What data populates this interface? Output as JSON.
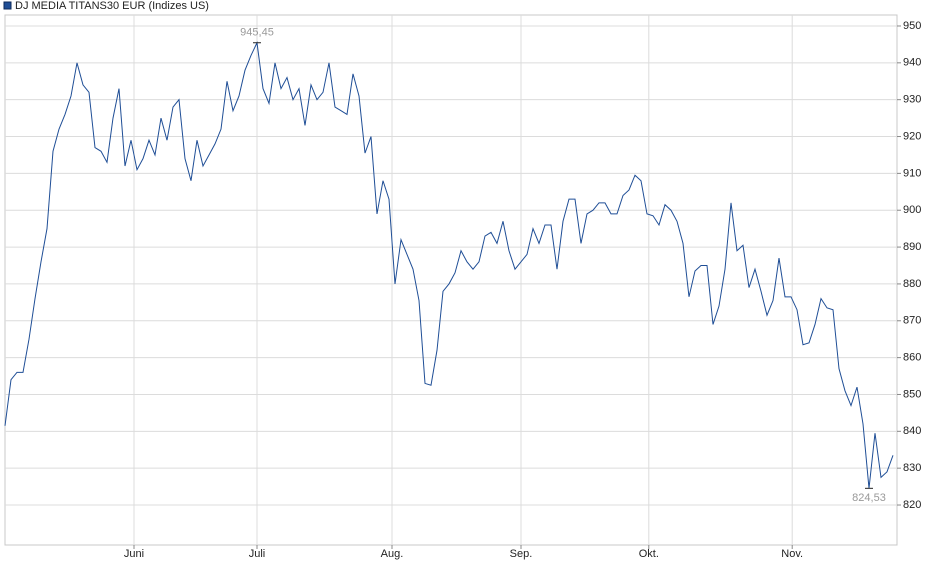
{
  "chart_data": {
    "type": "line",
    "series": [
      {
        "name": "DJ MEDIA TITANS30 EUR (Indizes US)",
        "color": "#1f4e96",
        "values": [
          841.5,
          854,
          856,
          856,
          865,
          876,
          886,
          895,
          916,
          922,
          926,
          931,
          940,
          934,
          932,
          917,
          916,
          913,
          925,
          933,
          912,
          919,
          911,
          914,
          919,
          915,
          925,
          919,
          928,
          930,
          914,
          908,
          919,
          912,
          915,
          918,
          922,
          935,
          927,
          931,
          938,
          942,
          945.45,
          933,
          929,
          940,
          933,
          936,
          930,
          933,
          923,
          934,
          930,
          932,
          940,
          928,
          927,
          926,
          937,
          931,
          915.5,
          920,
          899,
          908,
          903,
          880,
          892,
          888,
          884,
          875.5,
          853,
          852.5,
          862,
          878,
          880,
          883,
          889,
          886,
          884,
          886,
          893,
          894,
          891,
          897,
          889,
          884,
          886,
          888,
          895,
          891,
          896,
          896,
          884,
          897,
          903,
          903,
          891,
          899,
          900,
          902,
          902,
          899,
          899,
          904,
          905.5,
          909.5,
          908,
          899,
          898.5,
          896,
          901.5,
          900,
          897,
          891,
          876.5,
          883.5,
          885,
          885,
          869,
          874,
          884,
          902,
          889,
          890.5,
          879,
          884,
          878,
          871.5,
          875.5,
          887,
          876.5,
          876.5,
          873,
          863.5,
          864,
          869,
          876,
          873.5,
          873,
          857,
          851,
          847,
          852,
          842,
          824.53,
          839.5,
          827.5,
          829,
          833.5
        ]
      }
    ],
    "annotations": [
      "945,45",
      "824,53"
    ],
    "xlim": [
      0,
      148
    ],
    "xticks": [
      {
        "value": 21.5,
        "label": "Juni"
      },
      {
        "value": 42,
        "label": "Juli"
      },
      {
        "value": 64.5,
        "label": "Aug."
      },
      {
        "value": 86,
        "label": "Sep."
      },
      {
        "value": 107.3,
        "label": "Okt."
      },
      {
        "value": 131.2,
        "label": "Nov."
      }
    ],
    "ylim": [
      809.15,
      952.98
    ],
    "yticks": [
      820,
      830,
      840,
      850,
      860,
      870,
      880,
      890,
      900,
      910,
      920,
      930,
      940,
      950
    ],
    "grid": true
  }
}
